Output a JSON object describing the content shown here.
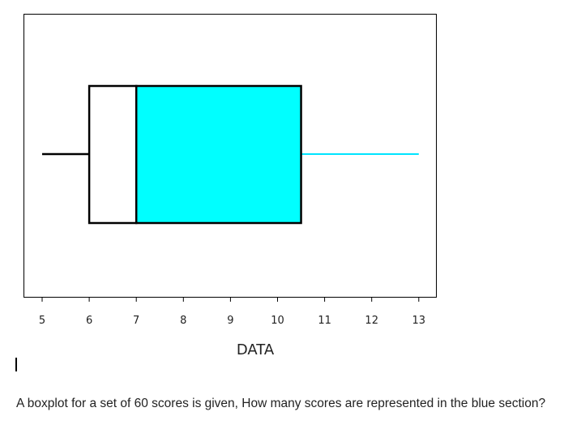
{
  "chart_data": {
    "type": "boxplot",
    "xlabel": "DATA",
    "xlim": [
      4.6,
      13.4
    ],
    "xticks": [
      5,
      6,
      7,
      8,
      9,
      10,
      11,
      12,
      13
    ],
    "tick_labels": [
      "5",
      "6",
      "7",
      "8",
      "9",
      "10",
      "11",
      "12",
      "13"
    ],
    "box": {
      "min": 5,
      "q1": 6,
      "median": 7,
      "q3": 10.5,
      "max": 13
    },
    "grid": false,
    "colors": {
      "left_box": "#ffffff",
      "right_box": "#00ffff",
      "left_whisker": "#000000",
      "right_whisker": "#00e5ff",
      "outline": "#000000"
    }
  },
  "question": {
    "text": "A boxplot for a set of 60 scores is given, How many scores are represented in the blue section?"
  }
}
